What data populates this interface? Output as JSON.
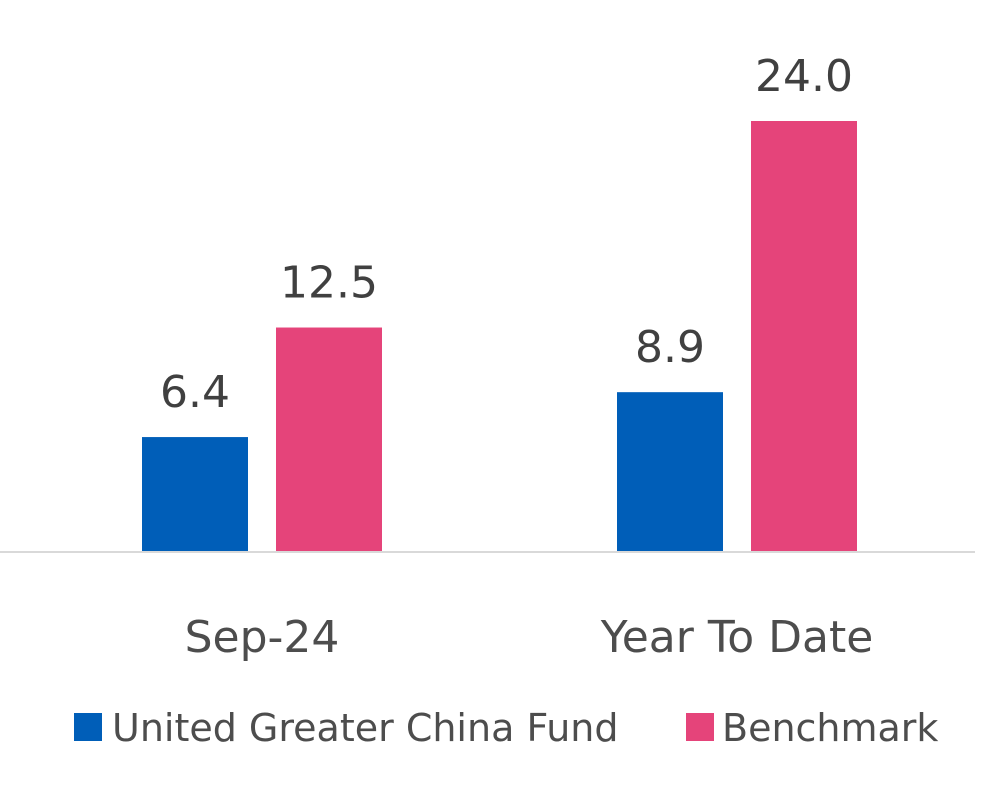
{
  "chart_data": {
    "type": "bar",
    "title": "",
    "xlabel": "",
    "ylabel": "",
    "categories": [
      "Sep-24",
      "Year To Date"
    ],
    "series": [
      {
        "name": "United Greater China Fund",
        "color": "#005EB8",
        "values": [
          6.4,
          8.9
        ]
      },
      {
        "name": "Benchmark",
        "color": "#E5447A",
        "values": [
          12.5,
          24.0
        ]
      }
    ],
    "value_labels": [
      [
        "6.4",
        "8.9"
      ],
      [
        "12.5",
        "24.0"
      ]
    ],
    "ylim": [
      0,
      25
    ],
    "grid": false,
    "legend_position": "bottom",
    "colors": {
      "baseline": "#D9D9D9",
      "label_text": "#404040",
      "axis_text": "#4D4D4D"
    }
  }
}
